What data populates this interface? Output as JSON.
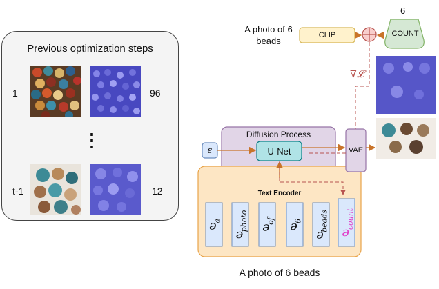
{
  "previous_panel": {
    "title": "Previous optimization steps",
    "row_top_step": "1",
    "row_top_count": "96",
    "ellipsis": "⋮",
    "row_bottom_step": "t-1",
    "row_bottom_count": "12"
  },
  "prompt_top": {
    "line1": "A photo of 6",
    "line2": "beads"
  },
  "count_target": "6",
  "clip_label": "CLIP",
  "count_label": "COUNT",
  "gradient_label": "∇𝓛",
  "diffusion": {
    "title": "Diffusion Process",
    "unet_label": "U-Net",
    "noise_label": "ε",
    "vae_label": "VAE"
  },
  "text_encoder": {
    "title": "Text Encoder",
    "tokens": [
      {
        "base": "e",
        "sub": "a"
      },
      {
        "base": "e",
        "sub": "photo"
      },
      {
        "base": "e",
        "sub": "of"
      },
      {
        "base": "e",
        "sub": "6"
      },
      {
        "base": "e",
        "sub": "beads"
      },
      {
        "base": "e",
        "sub": "count"
      }
    ]
  },
  "prompt_bottom": "A photo of 6 beads",
  "colors": {
    "encoder_fill": "#fde6c4",
    "encoder_border": "#e8a44a",
    "token_fill": "#dae8fc",
    "token_border": "#6c8ebf",
    "diffusion_fill": "#e1d5e7",
    "diffusion_border": "#9673a6",
    "unet_fill": "#b0e3e6",
    "unet_border": "#0e8088",
    "clip_fill": "#fff2cc",
    "clip_border": "#d6b656",
    "count_fill": "#d5e8d4",
    "count_border": "#82b366",
    "plus_fill": "#f8cecc",
    "plus_border": "#b85450",
    "arrow_orange": "#c9742a",
    "dashed_red": "#b85450",
    "count_token": "#e040c8"
  }
}
